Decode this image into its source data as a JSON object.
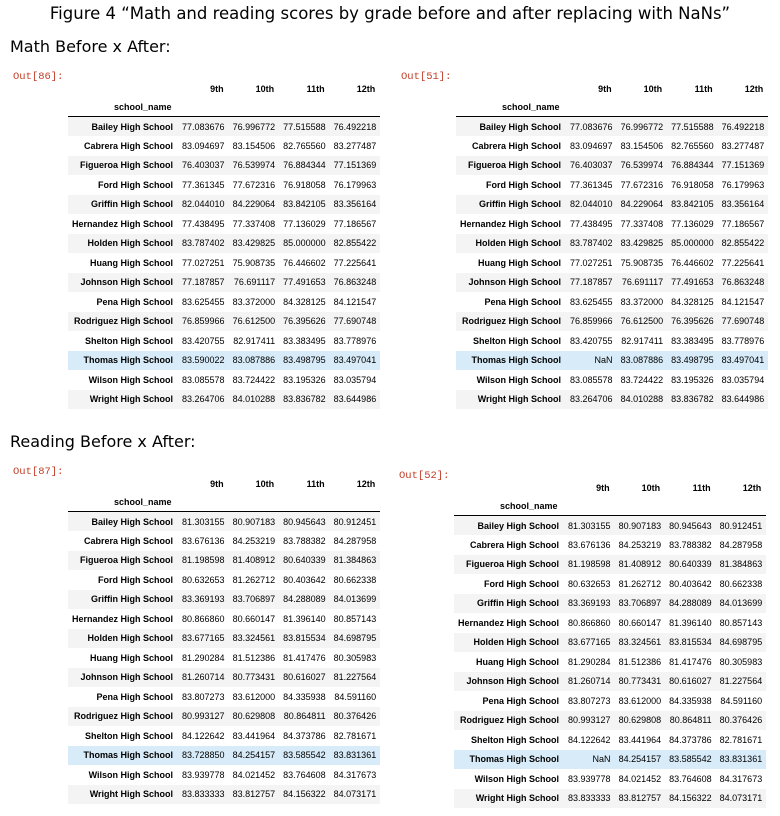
{
  "figure_title": "Figure 4 “Math and reading scores by grade before and after replacing with NaNs”",
  "sections": {
    "math": "Math Before x After:",
    "reading": "Reading Before x After:"
  },
  "columns": [
    "9th",
    "10th",
    "11th",
    "12th"
  ],
  "index_name": "school_name",
  "highlight_school": "Thomas High School",
  "colors": {
    "highlight": "#d8ebf8",
    "stripe": "#f4f4f4",
    "out_label": "#c2402a"
  },
  "tables": {
    "math_before": {
      "out_label": "Out[86]:",
      "rows": [
        [
          "Bailey High School",
          "77.083676",
          "76.996772",
          "77.515588",
          "76.492218"
        ],
        [
          "Cabrera High School",
          "83.094697",
          "83.154506",
          "82.765560",
          "83.277487"
        ],
        [
          "Figueroa High School",
          "76.403037",
          "76.539974",
          "76.884344",
          "77.151369"
        ],
        [
          "Ford High School",
          "77.361345",
          "77.672316",
          "76.918058",
          "76.179963"
        ],
        [
          "Griffin High School",
          "82.044010",
          "84.229064",
          "83.842105",
          "83.356164"
        ],
        [
          "Hernandez High School",
          "77.438495",
          "77.337408",
          "77.136029",
          "77.186567"
        ],
        [
          "Holden High School",
          "83.787402",
          "83.429825",
          "85.000000",
          "82.855422"
        ],
        [
          "Huang High School",
          "77.027251",
          "75.908735",
          "76.446602",
          "77.225641"
        ],
        [
          "Johnson High School",
          "77.187857",
          "76.691117",
          "77.491653",
          "76.863248"
        ],
        [
          "Pena High School",
          "83.625455",
          "83.372000",
          "84.328125",
          "84.121547"
        ],
        [
          "Rodriguez High School",
          "76.859966",
          "76.612500",
          "76.395626",
          "77.690748"
        ],
        [
          "Shelton High School",
          "83.420755",
          "82.917411",
          "83.383495",
          "83.778976"
        ],
        [
          "Thomas High School",
          "83.590022",
          "83.087886",
          "83.498795",
          "83.497041"
        ],
        [
          "Wilson High School",
          "83.085578",
          "83.724422",
          "83.195326",
          "83.035794"
        ],
        [
          "Wright High School",
          "83.264706",
          "84.010288",
          "83.836782",
          "83.644986"
        ]
      ]
    },
    "math_after": {
      "out_label": "Out[51]:",
      "rows": [
        [
          "Bailey High School",
          "77.083676",
          "76.996772",
          "77.515588",
          "76.492218"
        ],
        [
          "Cabrera High School",
          "83.094697",
          "83.154506",
          "82.765560",
          "83.277487"
        ],
        [
          "Figueroa High School",
          "76.403037",
          "76.539974",
          "76.884344",
          "77.151369"
        ],
        [
          "Ford High School",
          "77.361345",
          "77.672316",
          "76.918058",
          "76.179963"
        ],
        [
          "Griffin High School",
          "82.044010",
          "84.229064",
          "83.842105",
          "83.356164"
        ],
        [
          "Hernandez High School",
          "77.438495",
          "77.337408",
          "77.136029",
          "77.186567"
        ],
        [
          "Holden High School",
          "83.787402",
          "83.429825",
          "85.000000",
          "82.855422"
        ],
        [
          "Huang High School",
          "77.027251",
          "75.908735",
          "76.446602",
          "77.225641"
        ],
        [
          "Johnson High School",
          "77.187857",
          "76.691117",
          "77.491653",
          "76.863248"
        ],
        [
          "Pena High School",
          "83.625455",
          "83.372000",
          "84.328125",
          "84.121547"
        ],
        [
          "Rodriguez High School",
          "76.859966",
          "76.612500",
          "76.395626",
          "77.690748"
        ],
        [
          "Shelton High School",
          "83.420755",
          "82.917411",
          "83.383495",
          "83.778976"
        ],
        [
          "Thomas High School",
          "NaN",
          "83.087886",
          "83.498795",
          "83.497041"
        ],
        [
          "Wilson High School",
          "83.085578",
          "83.724422",
          "83.195326",
          "83.035794"
        ],
        [
          "Wright High School",
          "83.264706",
          "84.010288",
          "83.836782",
          "83.644986"
        ]
      ]
    },
    "reading_before": {
      "out_label": "Out[87]:",
      "rows": [
        [
          "Bailey High School",
          "81.303155",
          "80.907183",
          "80.945643",
          "80.912451"
        ],
        [
          "Cabrera High School",
          "83.676136",
          "84.253219",
          "83.788382",
          "84.287958"
        ],
        [
          "Figueroa High School",
          "81.198598",
          "81.408912",
          "80.640339",
          "81.384863"
        ],
        [
          "Ford High School",
          "80.632653",
          "81.262712",
          "80.403642",
          "80.662338"
        ],
        [
          "Griffin High School",
          "83.369193",
          "83.706897",
          "84.288089",
          "84.013699"
        ],
        [
          "Hernandez High School",
          "80.866860",
          "80.660147",
          "81.396140",
          "80.857143"
        ],
        [
          "Holden High School",
          "83.677165",
          "83.324561",
          "83.815534",
          "84.698795"
        ],
        [
          "Huang High School",
          "81.290284",
          "81.512386",
          "81.417476",
          "80.305983"
        ],
        [
          "Johnson High School",
          "81.260714",
          "80.773431",
          "80.616027",
          "81.227564"
        ],
        [
          "Pena High School",
          "83.807273",
          "83.612000",
          "84.335938",
          "84.591160"
        ],
        [
          "Rodriguez High School",
          "80.993127",
          "80.629808",
          "80.864811",
          "80.376426"
        ],
        [
          "Shelton High School",
          "84.122642",
          "83.441964",
          "84.373786",
          "82.781671"
        ],
        [
          "Thomas High School",
          "83.728850",
          "84.254157",
          "83.585542",
          "83.831361"
        ],
        [
          "Wilson High School",
          "83.939778",
          "84.021452",
          "83.764608",
          "84.317673"
        ],
        [
          "Wright High School",
          "83.833333",
          "83.812757",
          "84.156322",
          "84.073171"
        ]
      ]
    },
    "reading_after": {
      "out_label": "Out[52]:",
      "rows": [
        [
          "Bailey High School",
          "81.303155",
          "80.907183",
          "80.945643",
          "80.912451"
        ],
        [
          "Cabrera High School",
          "83.676136",
          "84.253219",
          "83.788382",
          "84.287958"
        ],
        [
          "Figueroa High School",
          "81.198598",
          "81.408912",
          "80.640339",
          "81.384863"
        ],
        [
          "Ford High School",
          "80.632653",
          "81.262712",
          "80.403642",
          "80.662338"
        ],
        [
          "Griffin High School",
          "83.369193",
          "83.706897",
          "84.288089",
          "84.013699"
        ],
        [
          "Hernandez High School",
          "80.866860",
          "80.660147",
          "81.396140",
          "80.857143"
        ],
        [
          "Holden High School",
          "83.677165",
          "83.324561",
          "83.815534",
          "84.698795"
        ],
        [
          "Huang High School",
          "81.290284",
          "81.512386",
          "81.417476",
          "80.305983"
        ],
        [
          "Johnson High School",
          "81.260714",
          "80.773431",
          "80.616027",
          "81.227564"
        ],
        [
          "Pena High School",
          "83.807273",
          "83.612000",
          "84.335938",
          "84.591160"
        ],
        [
          "Rodriguez High School",
          "80.993127",
          "80.629808",
          "80.864811",
          "80.376426"
        ],
        [
          "Shelton High School",
          "84.122642",
          "83.441964",
          "84.373786",
          "82.781671"
        ],
        [
          "Thomas High School",
          "NaN",
          "84.254157",
          "83.585542",
          "83.831361"
        ],
        [
          "Wilson High School",
          "83.939778",
          "84.021452",
          "83.764608",
          "84.317673"
        ],
        [
          "Wright High School",
          "83.833333",
          "83.812757",
          "84.156322",
          "84.073171"
        ]
      ]
    }
  }
}
